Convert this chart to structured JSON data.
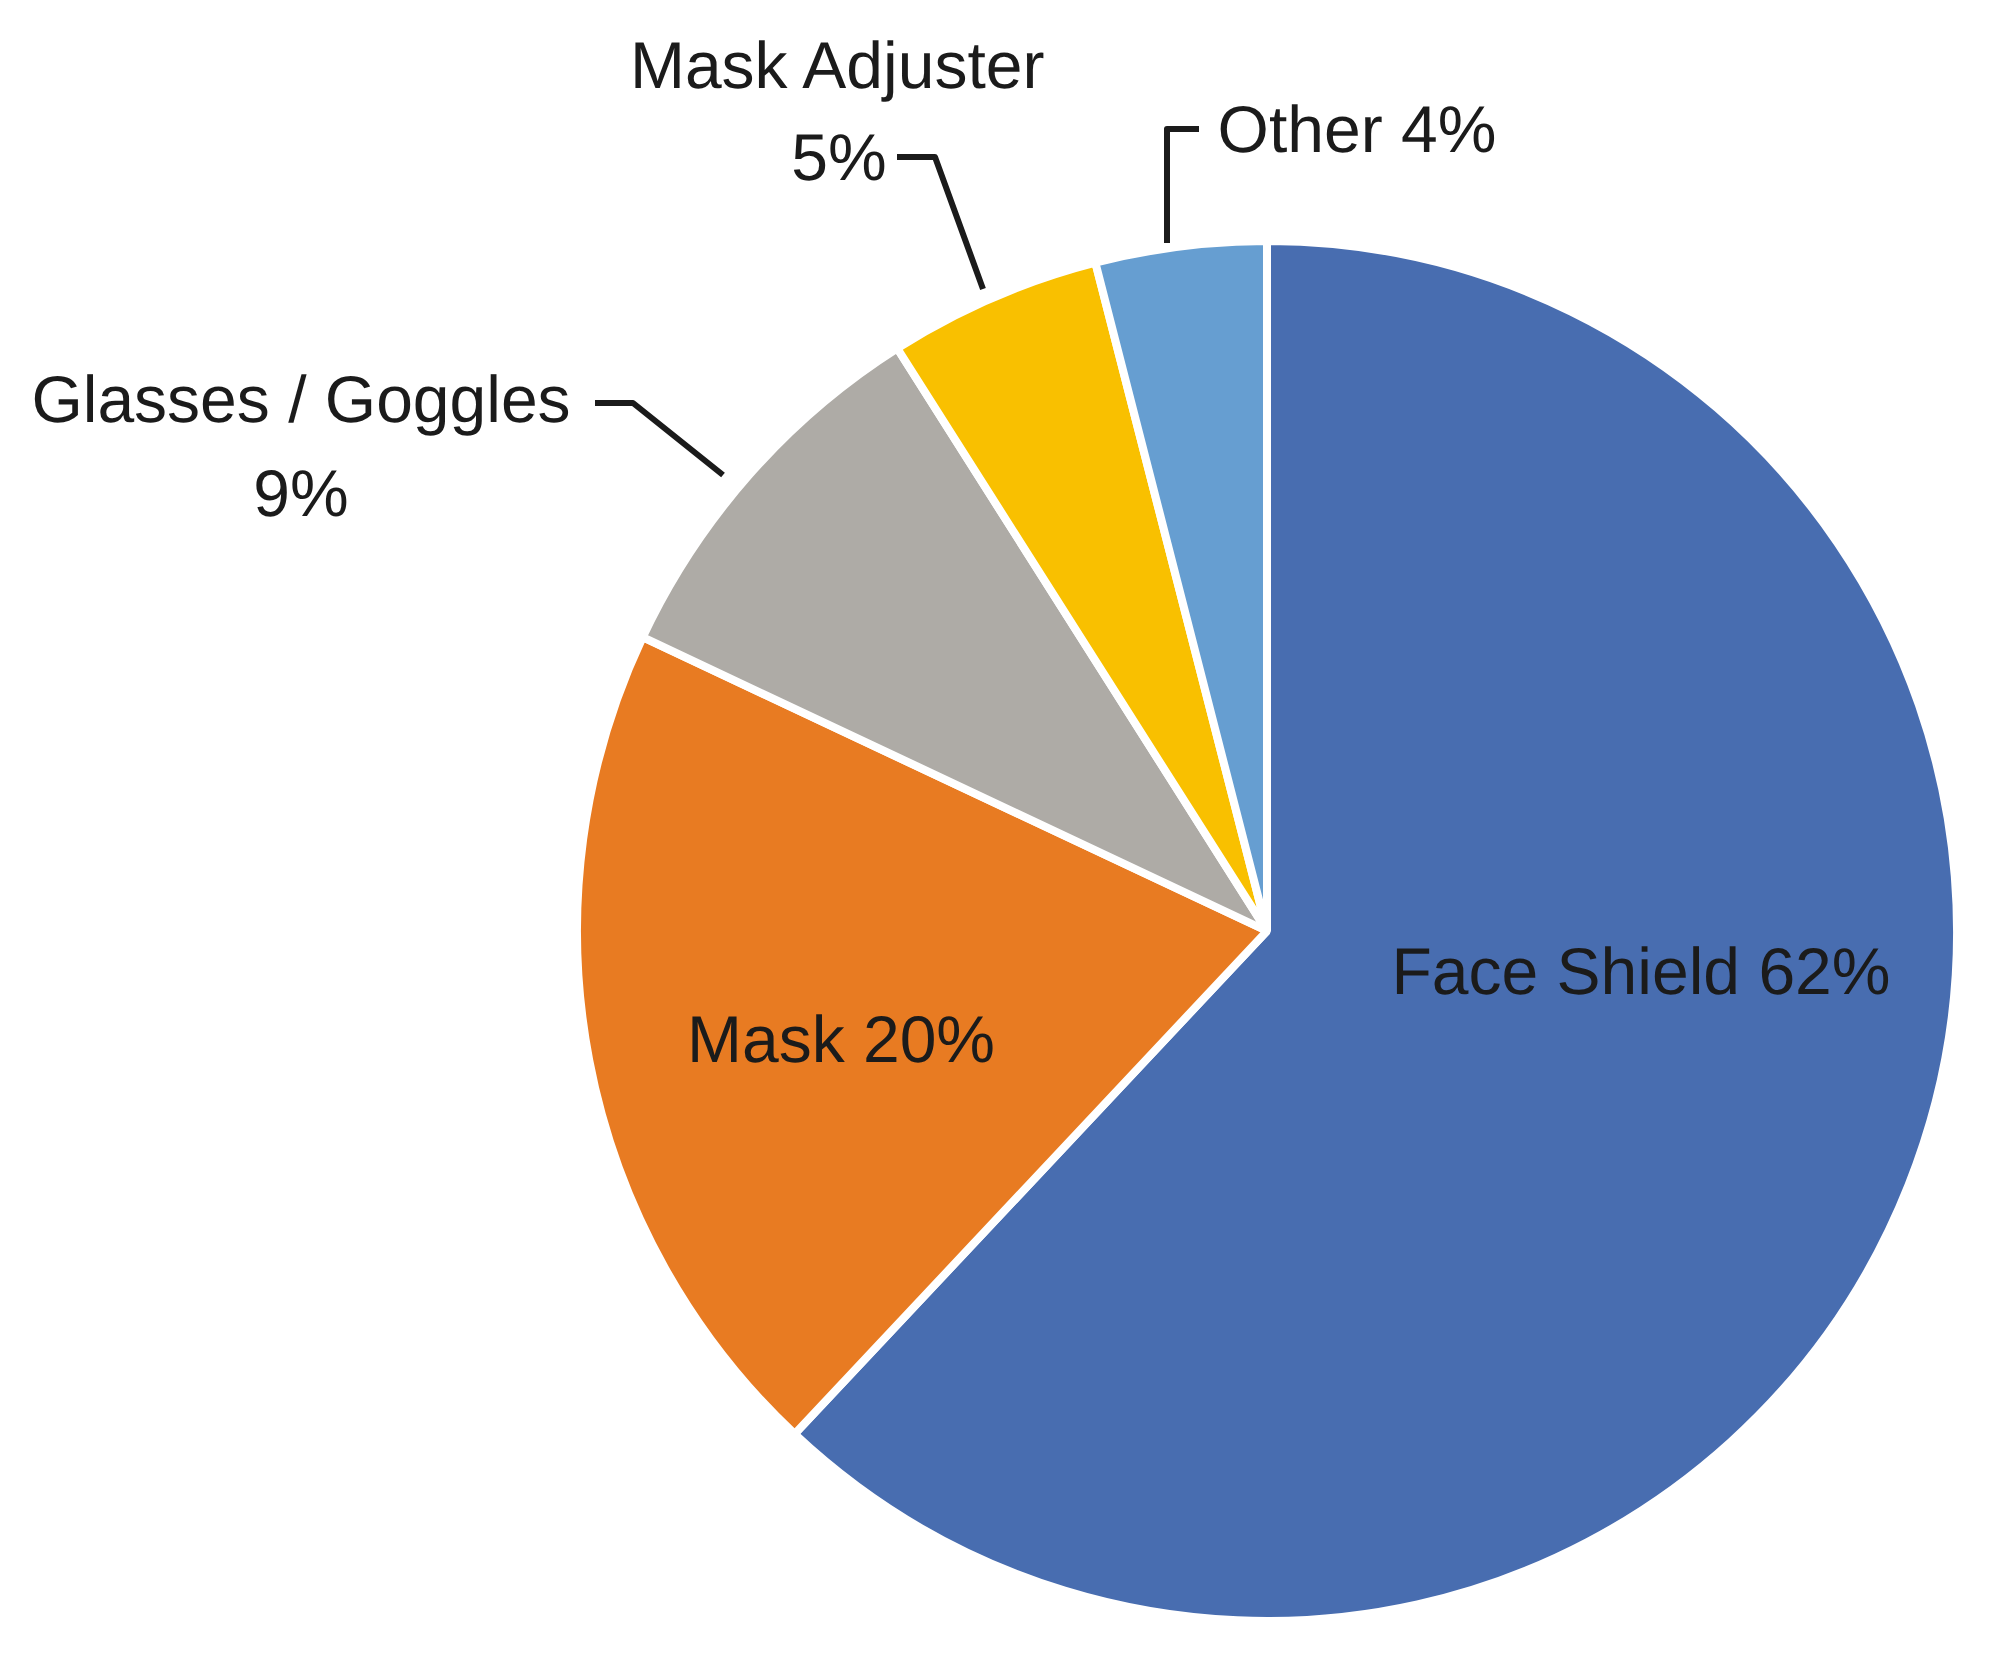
{
  "chart_data": {
    "type": "pie",
    "categories": [
      "Face Shield",
      "Mask",
      "Glasses / Goggles",
      "Mask Adjuster",
      "Other"
    ],
    "values": [
      62,
      20,
      9,
      5,
      4
    ],
    "colors": [
      "#486db0",
      "#e87b22",
      "#aeaba6",
      "#f9c000",
      "#669ed1"
    ],
    "value_labels": [
      "62%",
      "20%",
      "9%",
      "5%",
      "4%"
    ]
  }
}
